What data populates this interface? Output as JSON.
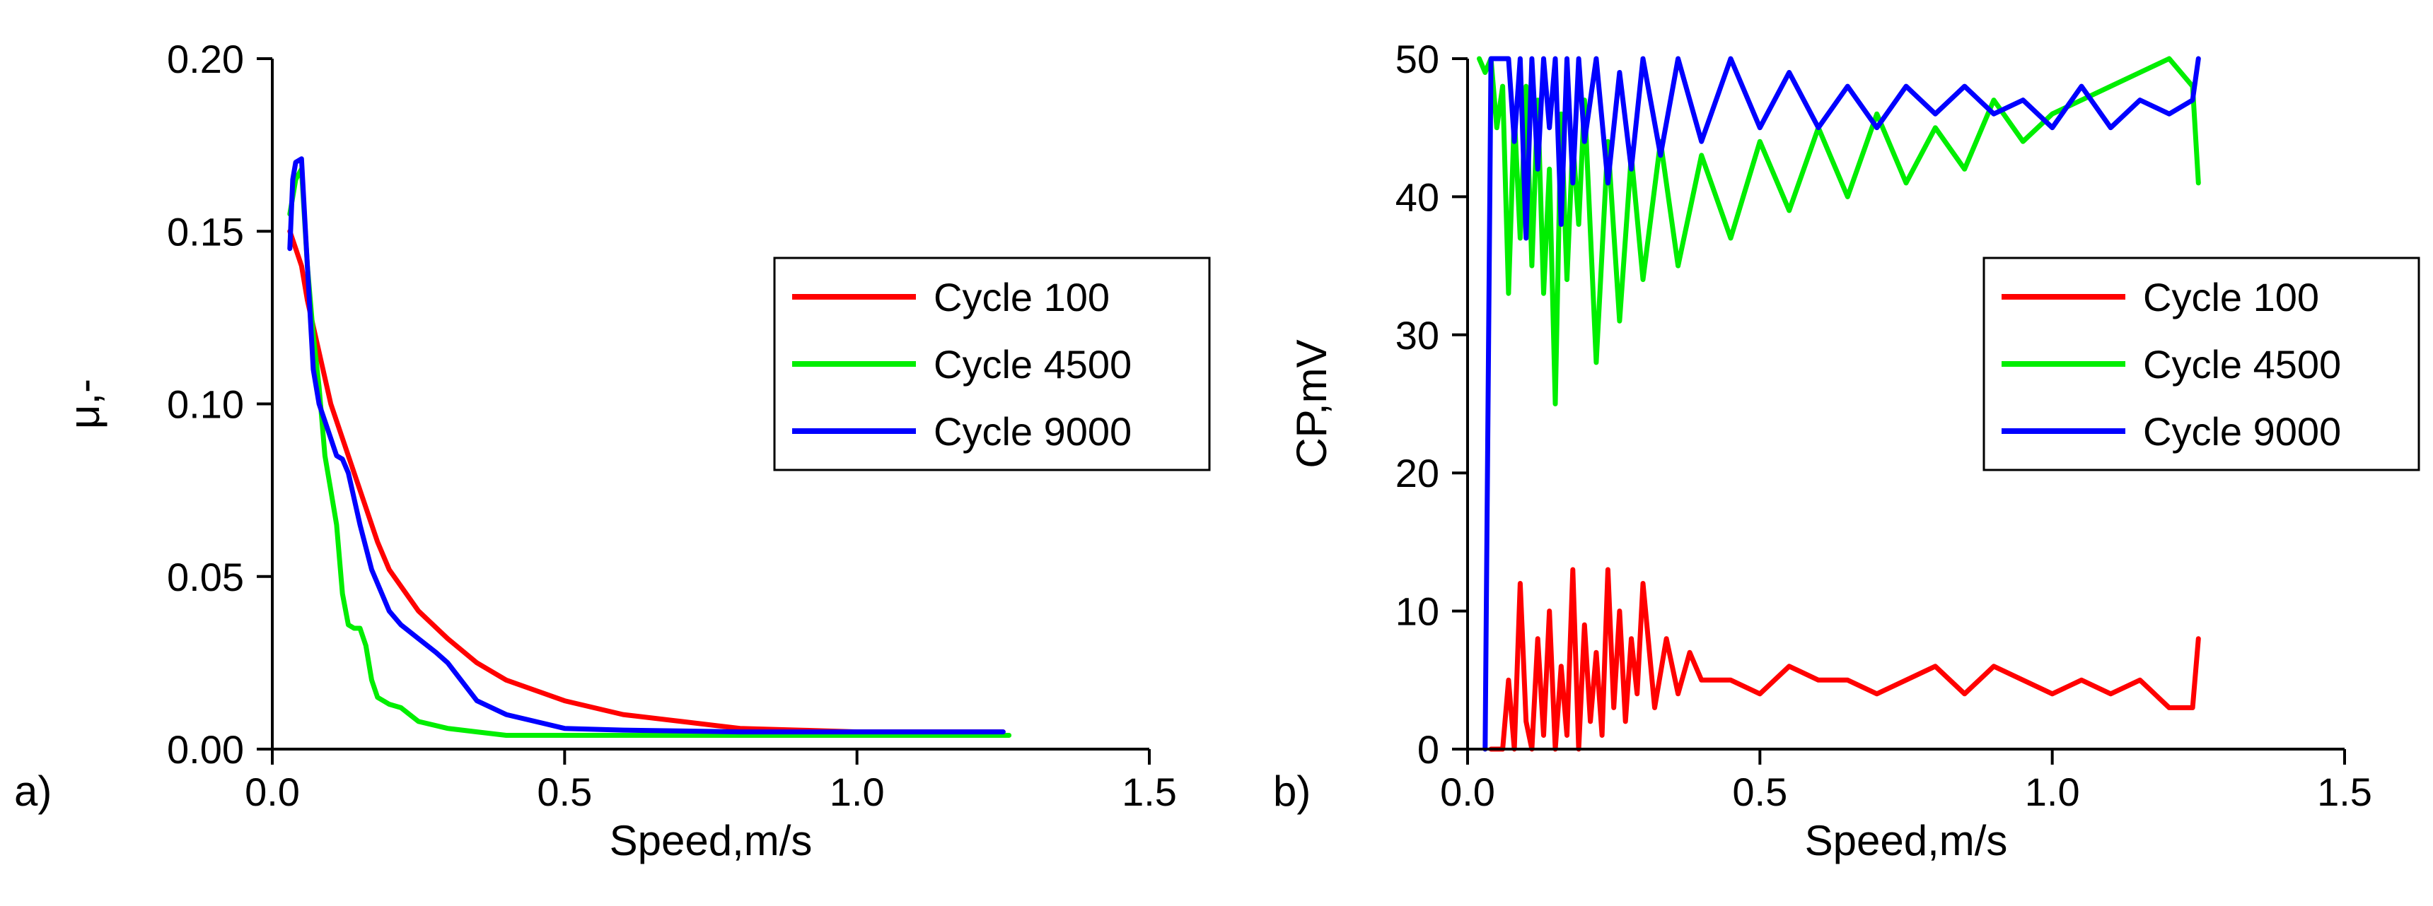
{
  "chart_data": [
    {
      "type": "line",
      "panel_label": "a)",
      "xlabel": "Speed,m/s",
      "ylabel": "μ,-",
      "xlim": [
        0.0,
        1.5
      ],
      "ylim": [
        0.0,
        0.2
      ],
      "xticks": [
        "0.0",
        "0.5",
        "1.0",
        "1.5"
      ],
      "yticks": [
        "0.00",
        "0.05",
        "0.10",
        "0.15",
        "0.20"
      ],
      "legend_position": "center-right",
      "series": [
        {
          "name": "Cycle 100",
          "color": "#ff0000",
          "x": [
            0.03,
            0.04,
            0.05,
            0.06,
            0.08,
            0.1,
            0.12,
            0.15,
            0.18,
            0.2,
            0.25,
            0.3,
            0.35,
            0.4,
            0.5,
            0.6,
            0.7,
            0.8,
            0.9,
            1.0,
            1.1,
            1.2,
            1.25
          ],
          "y": [
            0.15,
            0.145,
            0.14,
            0.13,
            0.115,
            0.1,
            0.09,
            0.075,
            0.06,
            0.052,
            0.04,
            0.032,
            0.025,
            0.02,
            0.014,
            0.01,
            0.008,
            0.006,
            0.0055,
            0.005,
            0.005,
            0.005,
            0.005
          ]
        },
        {
          "name": "Cycle 4500",
          "color": "#00ee00",
          "x": [
            0.03,
            0.04,
            0.05,
            0.06,
            0.07,
            0.08,
            0.09,
            0.1,
            0.11,
            0.12,
            0.13,
            0.14,
            0.15,
            0.16,
            0.17,
            0.18,
            0.2,
            0.22,
            0.25,
            0.3,
            0.35,
            0.4,
            0.5,
            0.6,
            0.8,
            1.0,
            1.2,
            1.26
          ],
          "y": [
            0.155,
            0.165,
            0.168,
            0.14,
            0.12,
            0.105,
            0.085,
            0.075,
            0.065,
            0.045,
            0.036,
            0.035,
            0.035,
            0.03,
            0.02,
            0.015,
            0.013,
            0.012,
            0.008,
            0.006,
            0.005,
            0.004,
            0.004,
            0.004,
            0.004,
            0.004,
            0.004,
            0.004
          ]
        },
        {
          "name": "Cycle 9000",
          "color": "#0000ff",
          "x": [
            0.03,
            0.035,
            0.04,
            0.05,
            0.06,
            0.07,
            0.08,
            0.09,
            0.1,
            0.11,
            0.12,
            0.13,
            0.15,
            0.17,
            0.2,
            0.22,
            0.25,
            0.28,
            0.3,
            0.35,
            0.4,
            0.45,
            0.5,
            0.6,
            0.8,
            1.0,
            1.2,
            1.25
          ],
          "y": [
            0.145,
            0.165,
            0.17,
            0.171,
            0.14,
            0.11,
            0.1,
            0.095,
            0.09,
            0.085,
            0.084,
            0.08,
            0.065,
            0.052,
            0.04,
            0.036,
            0.032,
            0.028,
            0.025,
            0.014,
            0.01,
            0.008,
            0.006,
            0.0055,
            0.005,
            0.005,
            0.005,
            0.005
          ]
        }
      ]
    },
    {
      "type": "line",
      "panel_label": "b)",
      "xlabel": "Speed,m/s",
      "ylabel": "CP,mV",
      "xlim": [
        0.0,
        1.5
      ],
      "ylim": [
        0,
        50
      ],
      "xticks": [
        "0.0",
        "0.5",
        "1.0",
        "1.5"
      ],
      "yticks": [
        "0",
        "10",
        "20",
        "30",
        "40",
        "50"
      ],
      "legend_position": "center-right",
      "series": [
        {
          "name": "Cycle 100",
          "color": "#ff0000",
          "x": [
            0.04,
            0.06,
            0.07,
            0.08,
            0.09,
            0.1,
            0.11,
            0.12,
            0.13,
            0.14,
            0.15,
            0.16,
            0.17,
            0.18,
            0.19,
            0.2,
            0.21,
            0.22,
            0.23,
            0.24,
            0.25,
            0.26,
            0.27,
            0.28,
            0.29,
            0.3,
            0.32,
            0.34,
            0.36,
            0.38,
            0.4,
            0.45,
            0.5,
            0.55,
            0.6,
            0.65,
            0.7,
            0.75,
            0.8,
            0.85,
            0.9,
            0.95,
            1.0,
            1.05,
            1.1,
            1.15,
            1.2,
            1.24,
            1.25
          ],
          "y": [
            0,
            0,
            5,
            0,
            12,
            2,
            0,
            8,
            1,
            10,
            0,
            6,
            1,
            13,
            0,
            9,
            2,
            7,
            1,
            13,
            3,
            10,
            2,
            8,
            4,
            12,
            3,
            8,
            4,
            7,
            5,
            5,
            4,
            6,
            5,
            5,
            4,
            5,
            6,
            4,
            6,
            5,
            4,
            5,
            4,
            5,
            3,
            3,
            8
          ]
        },
        {
          "name": "Cycle 4500",
          "color": "#00ee00",
          "x": [
            0.02,
            0.03,
            0.04,
            0.05,
            0.06,
            0.07,
            0.08,
            0.09,
            0.1,
            0.11,
            0.12,
            0.13,
            0.14,
            0.15,
            0.16,
            0.17,
            0.18,
            0.19,
            0.2,
            0.22,
            0.24,
            0.26,
            0.28,
            0.3,
            0.33,
            0.36,
            0.4,
            0.45,
            0.5,
            0.55,
            0.6,
            0.65,
            0.7,
            0.75,
            0.8,
            0.85,
            0.9,
            0.95,
            1.0,
            1.05,
            1.1,
            1.15,
            1.2,
            1.24,
            1.25
          ],
          "y": [
            50,
            49,
            50,
            45,
            48,
            33,
            46,
            37,
            48,
            35,
            47,
            33,
            42,
            25,
            46,
            34,
            44,
            38,
            47,
            28,
            44,
            31,
            43,
            34,
            44,
            35,
            43,
            37,
            44,
            39,
            45,
            40,
            46,
            41,
            45,
            42,
            47,
            44,
            46,
            47,
            48,
            49,
            50,
            48,
            41
          ]
        },
        {
          "name": "Cycle 9000",
          "color": "#0000ff",
          "x": [
            0.03,
            0.04,
            0.05,
            0.06,
            0.07,
            0.08,
            0.09,
            0.1,
            0.11,
            0.12,
            0.13,
            0.14,
            0.15,
            0.16,
            0.17,
            0.18,
            0.19,
            0.2,
            0.22,
            0.24,
            0.26,
            0.28,
            0.3,
            0.33,
            0.36,
            0.4,
            0.45,
            0.5,
            0.55,
            0.6,
            0.65,
            0.7,
            0.75,
            0.8,
            0.85,
            0.9,
            0.95,
            1.0,
            1.05,
            1.1,
            1.15,
            1.2,
            1.24,
            1.25
          ],
          "y": [
            0,
            50,
            50,
            50,
            50,
            44,
            50,
            37,
            50,
            42,
            50,
            45,
            50,
            38,
            50,
            41,
            50,
            44,
            50,
            41,
            49,
            42,
            50,
            43,
            50,
            44,
            50,
            45,
            49,
            45,
            48,
            45,
            48,
            46,
            48,
            46,
            47,
            45,
            48,
            45,
            47,
            46,
            47,
            50
          ]
        }
      ]
    }
  ]
}
